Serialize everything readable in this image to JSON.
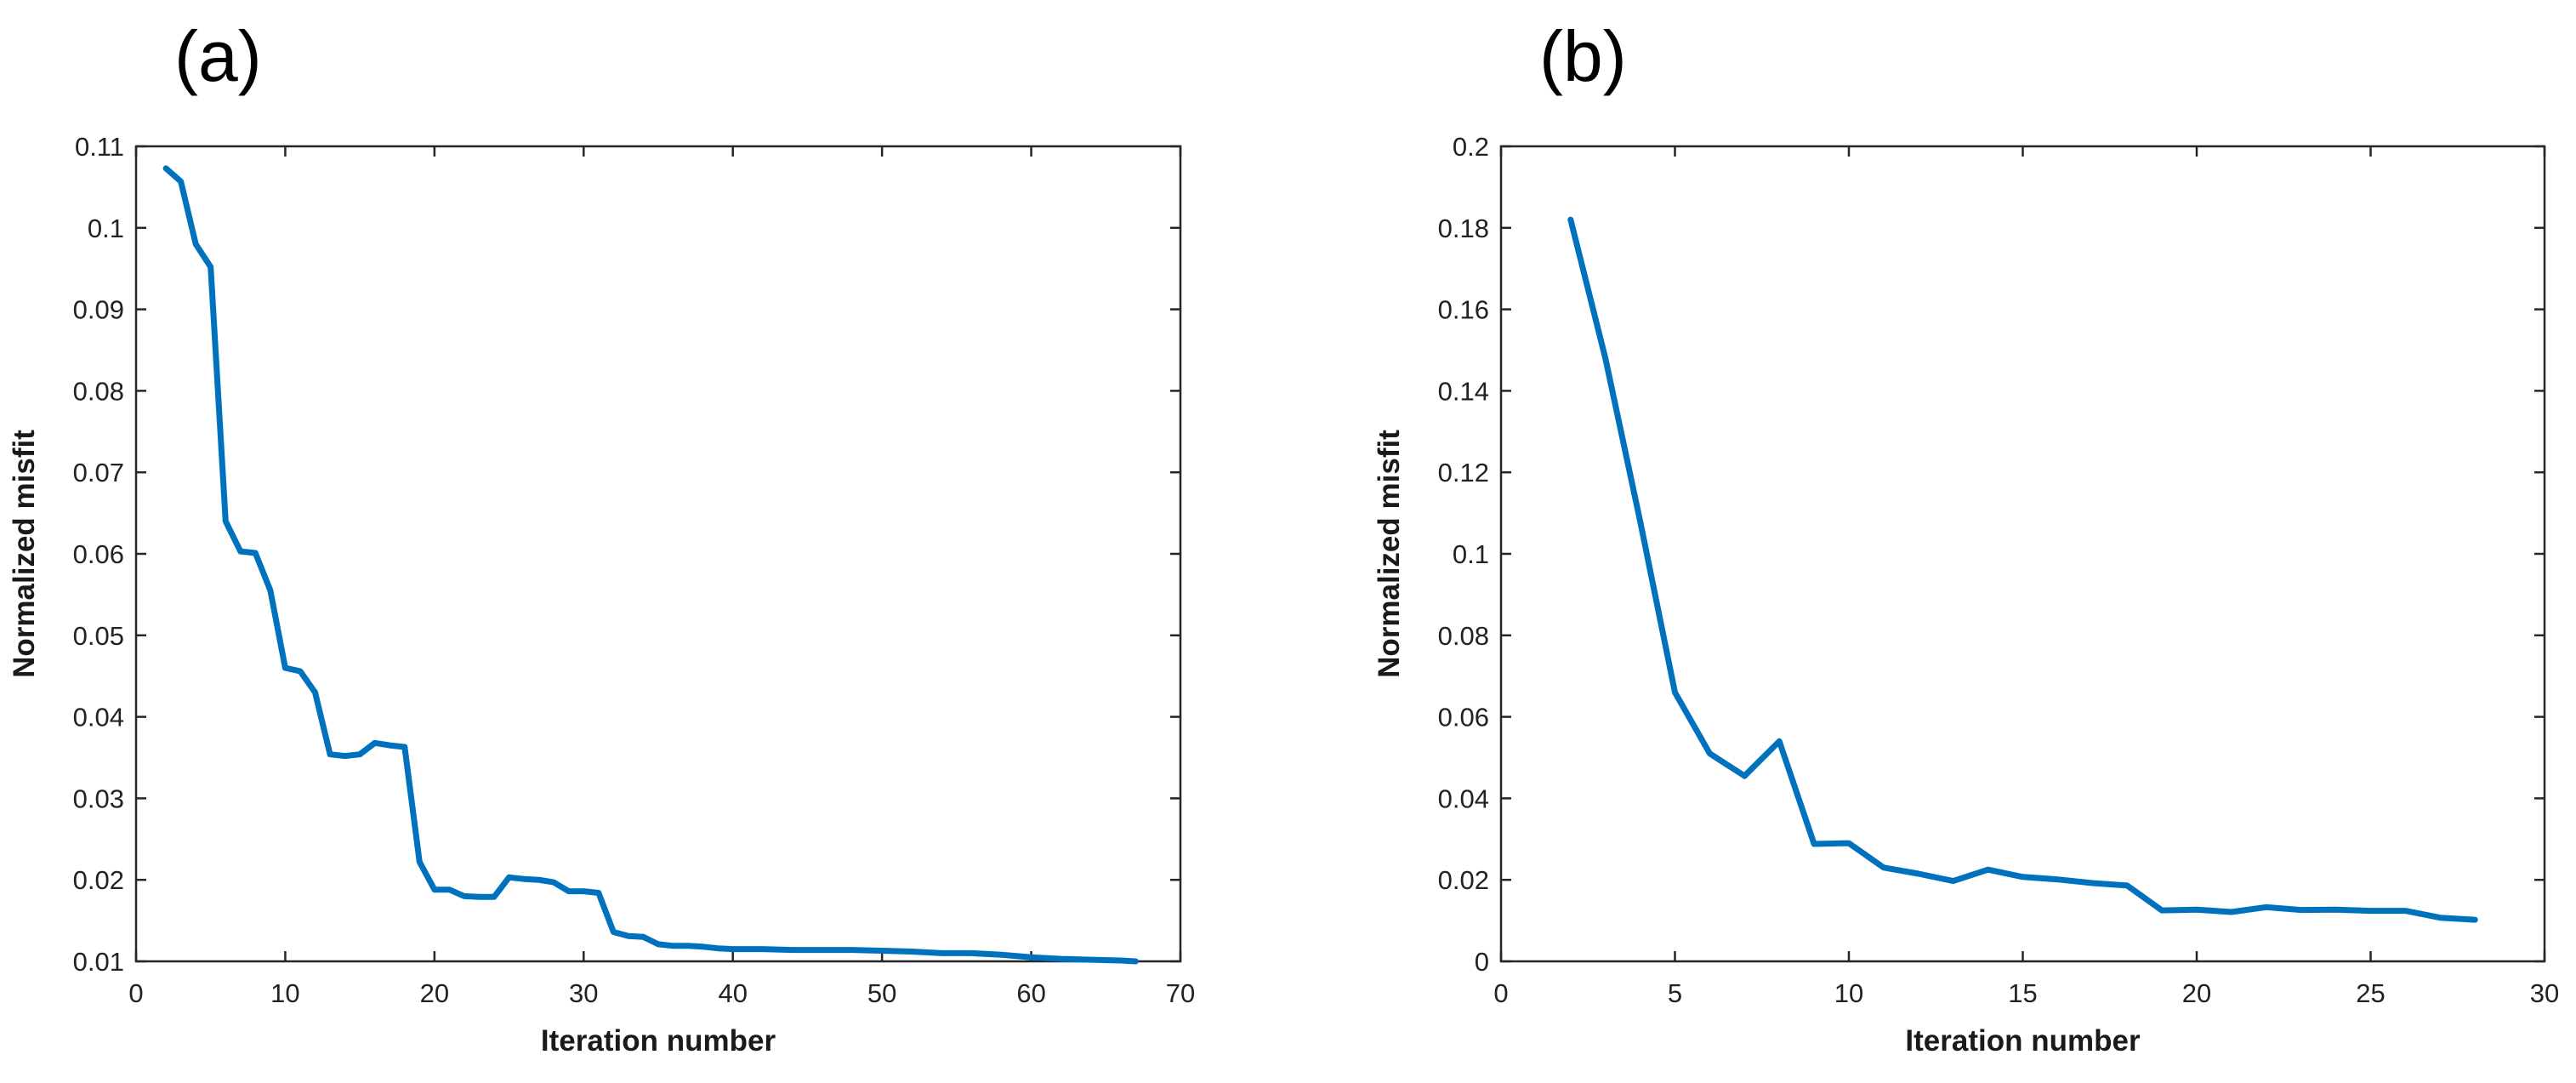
{
  "colors": {
    "series": "#0072BD",
    "axis": "#262626"
  },
  "panels": [
    {
      "label": "(a)"
    },
    {
      "label": "(b)"
    }
  ],
  "chart_data": [
    {
      "type": "line",
      "title": "",
      "xlabel": "Iteration number",
      "ylabel": "Normalized misfit",
      "xlim": [
        0,
        70
      ],
      "ylim": [
        0.01,
        0.11
      ],
      "xticks": [
        0,
        10,
        20,
        30,
        40,
        50,
        60,
        70
      ],
      "xtick_labels": [
        "0",
        "10",
        "20",
        "30",
        "40",
        "50",
        "60",
        "70"
      ],
      "yticks": [
        0.01,
        0.02,
        0.03,
        0.04,
        0.05,
        0.06,
        0.07,
        0.08,
        0.09,
        0.1,
        0.11
      ],
      "ytick_labels": [
        "0.01",
        "0.02",
        "0.03",
        "0.04",
        "0.05",
        "0.06",
        "0.07",
        "0.08",
        "0.09",
        "0.1",
        "0.11"
      ],
      "grid": false,
      "legend": "none",
      "series": [
        {
          "x": [
            2,
            3,
            4,
            5,
            6,
            7,
            8,
            9,
            10,
            11,
            12,
            13,
            14,
            15,
            16,
            17,
            18,
            19,
            20,
            21,
            22,
            23,
            24,
            25,
            26,
            27,
            28,
            29,
            30,
            31,
            32,
            33,
            34,
            35,
            36,
            37,
            38,
            39,
            40,
            42,
            44,
            46,
            48,
            50,
            52,
            54,
            56,
            58,
            60,
            62,
            64,
            66,
            67
          ],
          "y": [
            0.1073,
            0.1057,
            0.098,
            0.0952,
            0.064,
            0.0603,
            0.0601,
            0.0555,
            0.046,
            0.0456,
            0.043,
            0.0354,
            0.0352,
            0.0354,
            0.0368,
            0.0365,
            0.0363,
            0.0222,
            0.0188,
            0.0188,
            0.018,
            0.0179,
            0.0179,
            0.0203,
            0.0201,
            0.02,
            0.0197,
            0.0186,
            0.0186,
            0.0184,
            0.0136,
            0.0131,
            0.013,
            0.0121,
            0.0119,
            0.0119,
            0.0118,
            0.0116,
            0.0115,
            0.0115,
            0.0114,
            0.0114,
            0.0114,
            0.0113,
            0.0112,
            0.011,
            0.011,
            0.0108,
            0.0105,
            0.0103,
            0.0102,
            0.0101,
            0.01
          ]
        }
      ]
    },
    {
      "type": "line",
      "title": "",
      "xlabel": "Iteration number",
      "ylabel": "Normalized misfit",
      "xlim": [
        0,
        30
      ],
      "ylim": [
        0,
        0.2
      ],
      "xticks": [
        0,
        5,
        10,
        15,
        20,
        25,
        30
      ],
      "xtick_labels": [
        "0",
        "5",
        "10",
        "15",
        "20",
        "25",
        "30"
      ],
      "yticks": [
        0,
        0.02,
        0.04,
        0.06,
        0.08,
        0.1,
        0.12,
        0.14,
        0.16,
        0.18,
        0.2
      ],
      "ytick_labels": [
        "0",
        "0.02",
        "0.04",
        "0.06",
        "0.08",
        "0.1",
        "0.12",
        "0.14",
        "0.16",
        "0.18",
        "0.2"
      ],
      "grid": false,
      "legend": "none",
      "series": [
        {
          "x": [
            2,
            3,
            4,
            5,
            6,
            7,
            8,
            9,
            10,
            11,
            12,
            13,
            14,
            15,
            16,
            17,
            18,
            19,
            20,
            21,
            22,
            23,
            24,
            25,
            26,
            27,
            28
          ],
          "y": [
            0.182,
            0.148,
            0.108,
            0.066,
            0.051,
            0.0455,
            0.054,
            0.0288,
            0.029,
            0.023,
            0.0215,
            0.0197,
            0.0225,
            0.0207,
            0.0201,
            0.0192,
            0.0186,
            0.0125,
            0.0127,
            0.0121,
            0.0133,
            0.0126,
            0.0127,
            0.0124,
            0.0124,
            0.0107,
            0.0102
          ]
        }
      ]
    }
  ]
}
